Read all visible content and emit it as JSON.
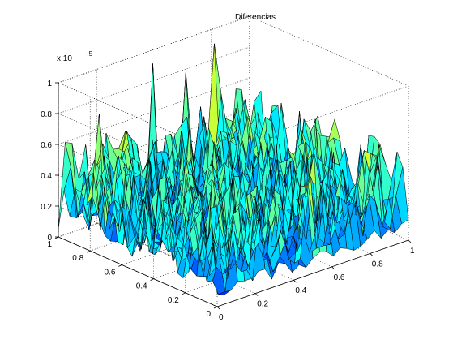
{
  "chart_data": {
    "type": "surface",
    "title": "Diferencias",
    "z_exponent_label": "x 10",
    "z_exponent": "-5",
    "x_ticks": [
      "0",
      "0.2",
      "0.4",
      "0.6",
      "0.8",
      "1"
    ],
    "y_ticks": [
      "0",
      "0.2",
      "0.4",
      "0.6",
      "0.8",
      "1"
    ],
    "z_ticks": [
      "0",
      "0.2",
      "0.4",
      "0.6",
      "0.8",
      "1"
    ],
    "xlim": [
      0,
      1
    ],
    "ylim": [
      0,
      1
    ],
    "zlim": [
      0,
      1
    ],
    "z_scale": 1e-05,
    "grid": true,
    "box": true,
    "colormap": "jet",
    "color_limits": [
      0,
      1
    ],
    "grid_size": 28,
    "peak_values": [
      {
        "x": 0.02,
        "y": 0.78,
        "z": 0.88
      },
      {
        "x": 0.46,
        "y": 0.96,
        "z": 0.94
      },
      {
        "x": 0.78,
        "y": 0.97,
        "z": 0.93
      },
      {
        "x": 0.22,
        "y": 0.3,
        "z": 0.6
      },
      {
        "x": 0.34,
        "y": 0.62,
        "z": 0.72
      }
    ],
    "typical_range": [
      0.05,
      0.6
    ]
  }
}
